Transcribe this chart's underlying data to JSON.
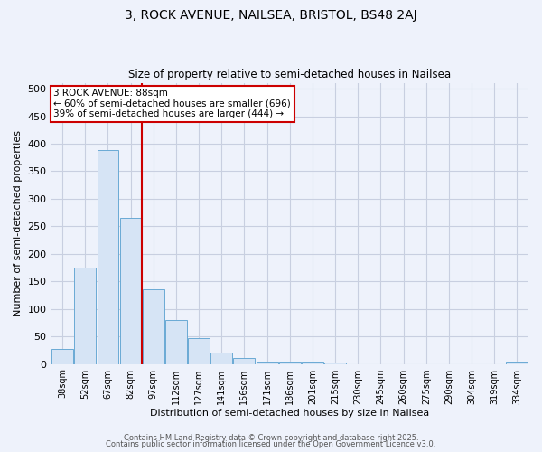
{
  "title": "3, ROCK AVENUE, NAILSEA, BRISTOL, BS48 2AJ",
  "subtitle": "Size of property relative to semi-detached houses in Nailsea",
  "xlabel": "Distribution of semi-detached houses by size in Nailsea",
  "ylabel": "Number of semi-detached properties",
  "categories": [
    "38sqm",
    "52sqm",
    "67sqm",
    "82sqm",
    "97sqm",
    "112sqm",
    "127sqm",
    "141sqm",
    "156sqm",
    "171sqm",
    "186sqm",
    "201sqm",
    "215sqm",
    "230sqm",
    "245sqm",
    "260sqm",
    "275sqm",
    "290sqm",
    "304sqm",
    "319sqm",
    "334sqm"
  ],
  "values": [
    28,
    175,
    388,
    265,
    135,
    80,
    47,
    21,
    10,
    5,
    5,
    5,
    3,
    0,
    0,
    0,
    0,
    0,
    0,
    0,
    5
  ],
  "bar_color": "#d6e4f5",
  "bar_edge_color": "#6aaad4",
  "vline_color": "#cc0000",
  "annotation_title": "3 ROCK AVENUE: 88sqm",
  "annotation_line1": "← 60% of semi-detached houses are smaller (696)",
  "annotation_line2": "39% of semi-detached houses are larger (444) →",
  "annotation_box_color": "#cc0000",
  "annotation_fill": "#ffffff",
  "ylim": [
    0,
    510
  ],
  "yticks": [
    0,
    50,
    100,
    150,
    200,
    250,
    300,
    350,
    400,
    450,
    500
  ],
  "footer1": "Contains HM Land Registry data © Crown copyright and database right 2025.",
  "footer2": "Contains public sector information licensed under the Open Government Licence v3.0.",
  "background_color": "#eef2fb",
  "plot_bg_color": "#eef2fb",
  "grid_color": "#c8cfe0"
}
